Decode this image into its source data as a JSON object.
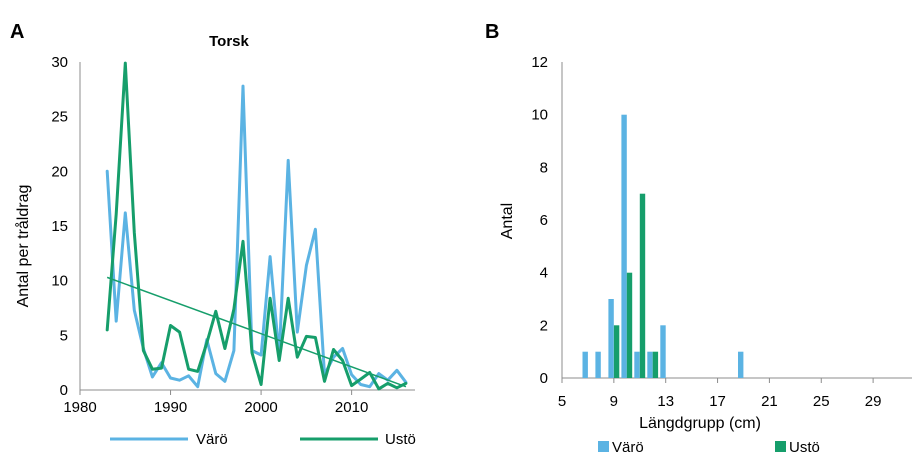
{
  "chart_data": [
    {
      "panel": "A",
      "type": "line",
      "title": "Torsk",
      "xlabel": "",
      "ylabel": "Antal per tråldrag",
      "xlim": [
        1980,
        2017
      ],
      "ylim": [
        0,
        30
      ],
      "x_ticks": [
        "1980",
        "1990",
        "2000",
        "2010"
      ],
      "y_ticks": [
        "0",
        "5",
        "10",
        "15",
        "20",
        "25",
        "30"
      ],
      "grid": false,
      "legend_position": "bottom",
      "series": [
        {
          "name": "Värö",
          "color": "#5bb3e3",
          "x": [
            1983,
            1984,
            1985,
            1986,
            1987,
            1988,
            1989,
            1990,
            1991,
            1992,
            1993,
            1994,
            1995,
            1996,
            1997,
            1998,
            1999,
            2000,
            2001,
            2002,
            2003,
            2004,
            2005,
            2006,
            2007,
            2008,
            2009,
            2010,
            2011,
            2012,
            2013,
            2014,
            2015,
            2016
          ],
          "values": [
            20,
            6.3,
            16.2,
            7.3,
            3.8,
            1.2,
            2.5,
            1.1,
            0.9,
            1.3,
            0.3,
            4.6,
            1.5,
            0.8,
            3.6,
            27.8,
            3.6,
            3.2,
            12.2,
            3.1,
            21.0,
            5.3,
            11.4,
            14.7,
            1.4,
            3.0,
            3.8,
            1.4,
            0.5,
            0.3,
            1.5,
            0.9,
            1.8,
            0.7
          ]
        },
        {
          "name": "Ustö",
          "color": "#169e6b",
          "x": [
            1983,
            1984,
            1985,
            1986,
            1987,
            1988,
            1989,
            1990,
            1991,
            1992,
            1993,
            1994,
            1995,
            1996,
            1997,
            1998,
            1999,
            2000,
            2001,
            2002,
            2003,
            2004,
            2005,
            2006,
            2007,
            2008,
            2009,
            2010,
            2011,
            2012,
            2013,
            2014,
            2015,
            2016
          ],
          "values": [
            5.5,
            16.1,
            29.9,
            14.4,
            3.6,
            1.9,
            2.0,
            5.9,
            5.3,
            1.9,
            1.7,
            4.3,
            7.2,
            3.8,
            7.4,
            13.6,
            3.4,
            0.5,
            8.4,
            2.7,
            8.4,
            3.0,
            4.9,
            4.8,
            0.8,
            3.7,
            2.7,
            0.4,
            1.0,
            1.6,
            0.1,
            0.6,
            0.2,
            0.6
          ]
        }
      ],
      "trendline": {
        "color": "#169e6b",
        "x": [
          1983,
          2016
        ],
        "values": [
          10.3,
          0.3
        ]
      }
    },
    {
      "panel": "B",
      "type": "bar",
      "title": "",
      "xlabel": "Längdgrupp (cm)",
      "ylabel": "Antal",
      "xlim": [
        5,
        32
      ],
      "ylim": [
        0,
        12
      ],
      "x_ticks": [
        "5",
        "9",
        "13",
        "17",
        "21",
        "25",
        "29"
      ],
      "y_ticks": [
        "0",
        "2",
        "4",
        "6",
        "8",
        "10",
        "12"
      ],
      "grid": false,
      "legend_position": "bottom",
      "series": [
        {
          "name": "Värö",
          "color": "#5bb3e3",
          "x": [
            7,
            8,
            9,
            10,
            11,
            12,
            13,
            19
          ],
          "values": [
            1,
            1,
            3,
            10,
            1,
            1,
            2,
            1
          ]
        },
        {
          "name": "Ustö",
          "color": "#169e6b",
          "x": [
            9,
            10,
            11,
            12
          ],
          "values": [
            2,
            4,
            7,
            1
          ]
        }
      ]
    }
  ]
}
